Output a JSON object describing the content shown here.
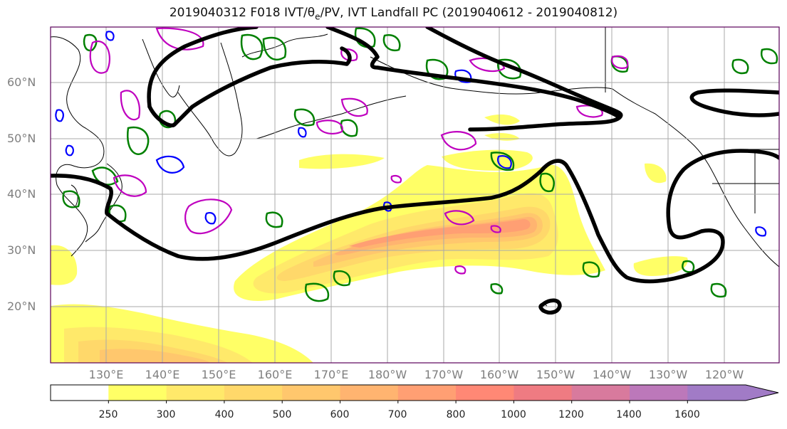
{
  "title": {
    "prefix": "2019040312 F018 IVT/",
    "theta": "θ",
    "theta_sub": "e",
    "suffix": "/PV, IVT Landfall PC (2019040612 - 2019040812)"
  },
  "lat_labels": [
    "60°N",
    "50°N",
    "40°N",
    "30°N",
    "20°N"
  ],
  "lon_labels": [
    "130°E",
    "140°E",
    "150°E",
    "160°E",
    "170°E",
    "180°W",
    "170°W",
    "160°W",
    "150°W",
    "140°W",
    "130°W",
    "120°W"
  ],
  "colorbar": {
    "ticks": [
      "250",
      "300",
      "400",
      "500",
      "600",
      "700",
      "800",
      "1000",
      "1200",
      "1400",
      "1600"
    ],
    "colors": [
      "#ffff66",
      "#ffe96a",
      "#ffd86a",
      "#ffc76d",
      "#ffb470",
      "#ff9f73",
      "#ff8875",
      "#ef7b82",
      "#d87a9d",
      "#bc78ba",
      "#a17bc6"
    ]
  },
  "legend_colors": {
    "landfall_pc": "#000000",
    "theta_e": "#008000",
    "pv_positive": "#bf00bf",
    "pv_negative": "#0000ff"
  }
}
